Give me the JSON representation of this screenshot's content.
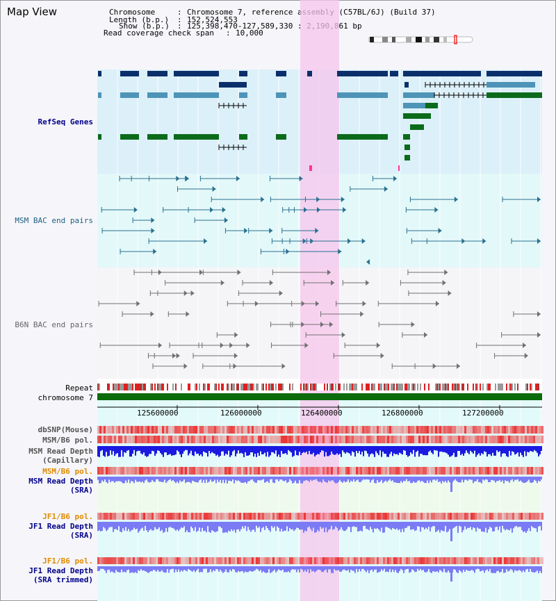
{
  "view": {
    "title": "Map View"
  },
  "header": {
    "chromosome_key": "Chromosome",
    "chromosome_value": "Chromosome 7, reference assembly (C57BL/6J) (Build 37)",
    "length_key": "Length (b.p.)",
    "length_value": "152,524,553",
    "show_key": "Show (b.p.)",
    "show_value": "125,398,470-127,589,330 : 2,190,861 bp",
    "coverage_key": "Read coverage check span",
    "coverage_value": "10,000"
  },
  "tracks": {
    "refseq": "RefSeq Genes",
    "msm_bac": "MSM BAC end pairs",
    "b6n_bac": "B6N BAC end pairs",
    "repeat": "Repeat",
    "chromosome": "chromosome 7",
    "dbsnp": "dbSNP(Mouse)",
    "msm_b6_pol_1": "MSM/B6 pol.",
    "msm_read_depth_cap_1": "MSM Read Depth",
    "msm_read_depth_cap_2": "(Capillary)",
    "msm_b6_pol_2": "MSM/B6 pol.",
    "msm_read_depth_sra_1": "MSM Read Depth",
    "msm_read_depth_sra_2": "(SRA)",
    "jf1_b6_pol_1": "JF1/B6 pol.",
    "jf1_read_depth_sra_1": "JF1 Read Depth",
    "jf1_read_depth_sra_2": "(SRA)",
    "jf1_b6_pol_2": "JF1/B6 pol.",
    "jf1_read_depth_trim_1": "JF1 Read Depth",
    "jf1_read_depth_trim_2": "(SRA trimmed)"
  },
  "axis": {
    "ticks": [
      "125600000",
      "126000000",
      "126400000",
      "126800000",
      "127200000"
    ]
  },
  "colors": {
    "refseq_dark": "#0b2f6b",
    "refseq_mid": "#4d94b8",
    "refseq_green": "#0b6b1b",
    "msm_line": "#2a6f8f",
    "b6n_line": "#707070",
    "highlight": "#f8c8ec",
    "orange_label": "#e08a00",
    "blue_label": "#00008b"
  }
}
